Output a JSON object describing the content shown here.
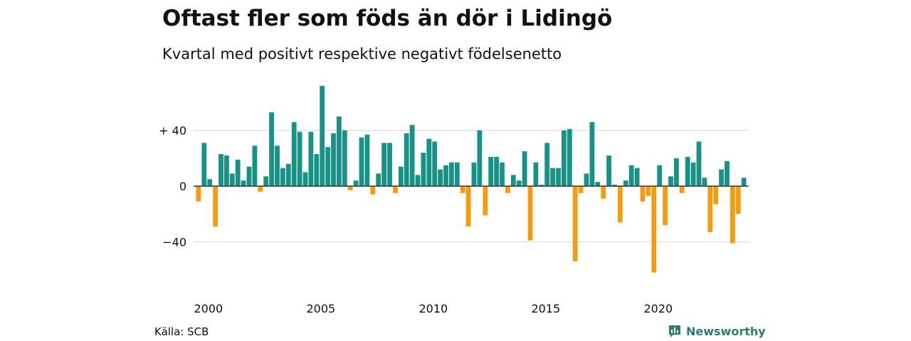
{
  "header": {
    "title": "Oftast fler som föds än dör i Lidingö",
    "subtitle": "Kvartal med positivt respektive negativt födelsenetto"
  },
  "footer": {
    "source": "Källa: SCB",
    "brand": "Newsworthy"
  },
  "colors": {
    "positive": "#169286",
    "negative": "#f39c12",
    "grid": "#dddddd",
    "zero_line": "#333333",
    "brand": "#2e7d6e"
  },
  "icons": {
    "brand_logo": "bar-chart-bubble-icon"
  },
  "chart_data": {
    "type": "bar",
    "title": "Oftast fler som föds än dör i Lidingö",
    "subtitle": "Kvartal med positivt respektive negativt födelsenetto",
    "x_start_year": 2000,
    "periods_per_year": 4,
    "ylim": [
      -62,
      72
    ],
    "y_ticks": [
      {
        "value": 40,
        "label": "+ 40"
      },
      {
        "value": 0,
        "label": "0"
      },
      {
        "value": -40,
        "label": "−40"
      }
    ],
    "x_ticks": [
      {
        "year": 2000,
        "label": "2000"
      },
      {
        "year": 2005,
        "label": "2005"
      },
      {
        "year": 2010,
        "label": "2010"
      },
      {
        "year": 2015,
        "label": "2015"
      },
      {
        "year": 2020,
        "label": "2020"
      }
    ],
    "grid": true,
    "values": [
      -11,
      31,
      5,
      -29,
      23,
      22,
      9,
      19,
      4,
      14,
      29,
      -4,
      7,
      53,
      29,
      13,
      16,
      46,
      39,
      10,
      39,
      23,
      72,
      28,
      38,
      50,
      40,
      -3,
      4,
      35,
      37,
      -6,
      9,
      31,
      31,
      -5,
      14,
      38,
      44,
      8,
      24,
      34,
      32,
      12,
      15,
      17,
      17,
      -5,
      -29,
      17,
      40,
      -21,
      21,
      21,
      17,
      -5,
      8,
      4,
      25,
      -39,
      17,
      1,
      31,
      13,
      13,
      40,
      41,
      -54,
      -5,
      9,
      46,
      3,
      -9,
      22,
      1,
      -26,
      4,
      15,
      13,
      -11,
      -7,
      -62,
      15,
      -28,
      7,
      20,
      -5,
      21,
      17,
      32,
      6,
      -33,
      -13,
      12,
      18,
      -41,
      -20,
      6
    ]
  }
}
